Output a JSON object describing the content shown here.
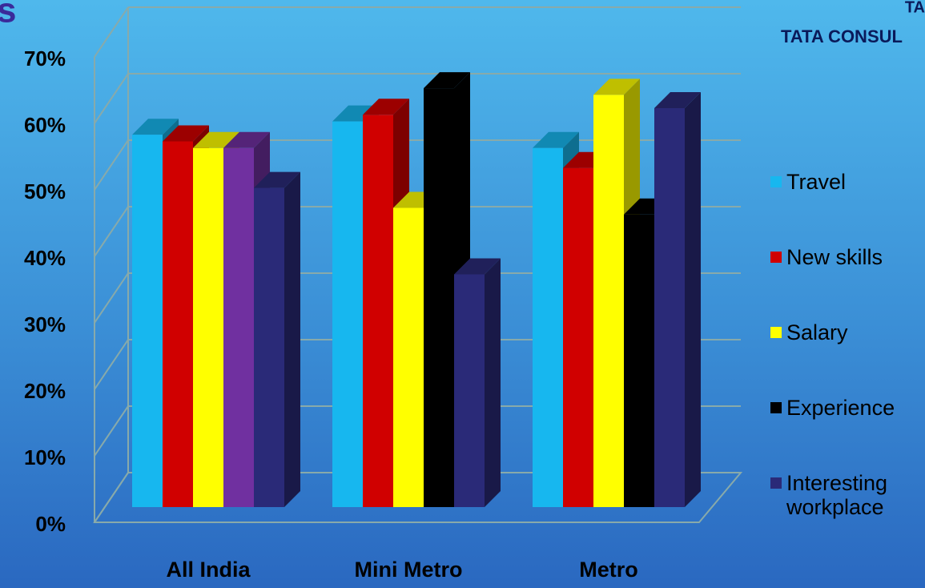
{
  "chart_data": {
    "type": "bar3d",
    "title": "s",
    "brand_top": "TA",
    "brand": "TATA CONSUL",
    "categories": [
      "All  India",
      "Mini Metro",
      "Metro"
    ],
    "series": [
      {
        "name": "Travel",
        "color": "#17b7ef",
        "values": [
          56,
          58,
          54
        ]
      },
      {
        "name": "New skills",
        "color": "#d00000",
        "values": [
          55,
          59,
          51
        ]
      },
      {
        "name": "Salary",
        "color": "#ffff00",
        "values": [
          54,
          45,
          62
        ]
      },
      {
        "name": "Experience",
        "color": "#000000",
        "colors": [
          "#7030a0",
          "#000000",
          "#000000"
        ],
        "values": [
          54,
          63,
          44
        ]
      },
      {
        "name": "Interesting workplace",
        "color": "#2a2a78",
        "values": [
          48,
          35,
          60
        ]
      }
    ],
    "ylim": [
      0,
      70
    ],
    "yticks": [
      {
        "value": 0,
        "label": "0%"
      },
      {
        "value": 10,
        "label": "10%"
      },
      {
        "value": 20,
        "label": "20%"
      },
      {
        "value": 30,
        "label": "30%"
      },
      {
        "value": 40,
        "label": "40%"
      },
      {
        "value": 50,
        "label": "50%"
      },
      {
        "value": 60,
        "label": "60%"
      },
      {
        "value": 70,
        "label": "70%"
      }
    ],
    "grid": true,
    "legend": "right"
  }
}
